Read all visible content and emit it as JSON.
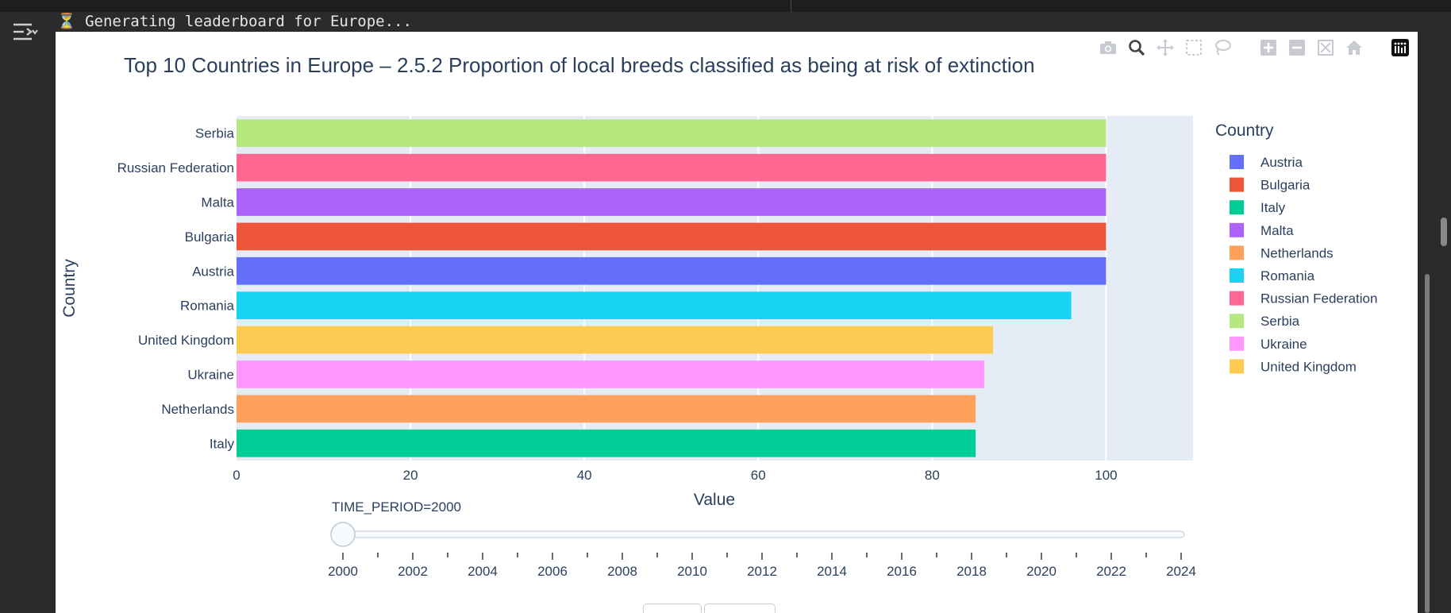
{
  "status": {
    "icon": "hourglass-icon",
    "text": "⏳ Generating leaderboard for Europe..."
  },
  "modebar": {
    "icons": [
      "camera-icon",
      "zoom-icon",
      "pan-icon",
      "box-select-icon",
      "lasso-icon",
      "zoom-in-icon",
      "zoom-out-icon",
      "autoscale-icon",
      "reset-home-icon",
      "plotly-logo-icon"
    ]
  },
  "chart_data": {
    "type": "bar",
    "orientation": "horizontal",
    "title": "Top 10 Countries in Europe – 2.5.2 Proportion of local breeds classified as being at risk of extinction",
    "xlabel": "Value",
    "ylabel": "Country",
    "xlim": [
      0,
      110
    ],
    "xticks": [
      0,
      20,
      40,
      60,
      80,
      100
    ],
    "grid": true,
    "categories": [
      "Serbia",
      "Russian Federation",
      "Malta",
      "Bulgaria",
      "Austria",
      "Romania",
      "United Kingdom",
      "Ukraine",
      "Netherlands",
      "Italy"
    ],
    "values": [
      100,
      100,
      100,
      100,
      100,
      96,
      87,
      86,
      85,
      85
    ],
    "colors": [
      "#B6E880",
      "#FF6692",
      "#AB63FA",
      "#EF553B",
      "#636EFA",
      "#19D3F3",
      "#FECB52",
      "#FF97FF",
      "#FFA15A",
      "#00CC96"
    ],
    "legend": {
      "title": "Country",
      "placement": "right",
      "entries": [
        {
          "name": "Austria",
          "color": "#636EFA"
        },
        {
          "name": "Bulgaria",
          "color": "#EF553B"
        },
        {
          "name": "Italy",
          "color": "#00CC96"
        },
        {
          "name": "Malta",
          "color": "#AB63FA"
        },
        {
          "name": "Netherlands",
          "color": "#FFA15A"
        },
        {
          "name": "Romania",
          "color": "#19D3F3"
        },
        {
          "name": "Russian Federation",
          "color": "#FF6692"
        },
        {
          "name": "Serbia",
          "color": "#B6E880"
        },
        {
          "name": "Ukraine",
          "color": "#FF97FF"
        },
        {
          "name": "United Kingdom",
          "color": "#FECB52"
        }
      ]
    },
    "slider": {
      "label": "TIME_PERIOD=2000",
      "current": 2000,
      "min": 2000,
      "max": 2024,
      "tick_labels": [
        "2000",
        "2002",
        "2004",
        "2006",
        "2008",
        "2010",
        "2012",
        "2014",
        "2016",
        "2018",
        "2020",
        "2022",
        "2024"
      ]
    }
  }
}
